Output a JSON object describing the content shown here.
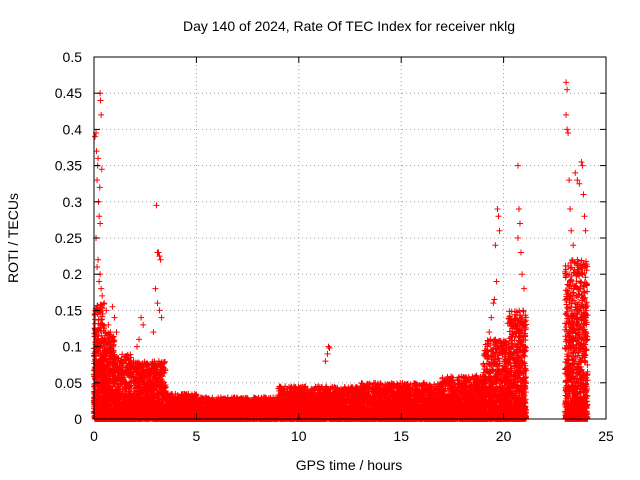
{
  "chart_data": {
    "type": "scatter",
    "title": "Day 140 of 2024, Rate Of TEC Index for receiver nklg",
    "xlabel": "GPS time / hours",
    "ylabel": "ROTI / TECUs",
    "xlim": [
      0,
      25
    ],
    "ylim": [
      0,
      0.5
    ],
    "xticks": [
      0,
      5,
      10,
      15,
      20,
      25
    ],
    "yticks": [
      0,
      0.05,
      0.1,
      0.15,
      0.2,
      0.25,
      0.3,
      0.35,
      0.4,
      0.45,
      0.5
    ],
    "grid": true,
    "marker": "+",
    "colors": {
      "points": "#ff0000",
      "grid": "#a0a0a0",
      "axis": "#000000"
    },
    "series": [
      {
        "name": "ROTI",
        "points": [
          [
            0.05,
            0.39
          ],
          [
            0.1,
            0.395
          ],
          [
            0.12,
            0.37
          ],
          [
            0.15,
            0.33
          ],
          [
            0.18,
            0.35
          ],
          [
            0.2,
            0.36
          ],
          [
            0.22,
            0.3
          ],
          [
            0.25,
            0.28
          ],
          [
            0.3,
            0.45
          ],
          [
            0.32,
            0.44
          ],
          [
            0.35,
            0.42
          ],
          [
            0.38,
            0.345
          ],
          [
            0.28,
            0.32
          ],
          [
            0.3,
            0.27
          ],
          [
            0.1,
            0.25
          ],
          [
            0.15,
            0.21
          ],
          [
            0.2,
            0.22
          ],
          [
            0.25,
            0.19
          ],
          [
            0.3,
            0.2
          ],
          [
            0.35,
            0.18
          ],
          [
            0.4,
            0.17
          ],
          [
            0.5,
            0.16
          ],
          [
            0.6,
            0.15
          ],
          [
            0.7,
            0.13
          ],
          [
            0.8,
            0.12
          ],
          [
            0.9,
            0.155
          ],
          [
            1.0,
            0.14
          ],
          [
            1.1,
            0.12
          ],
          [
            3.05,
            0.295
          ],
          [
            3.1,
            0.23
          ],
          [
            3.15,
            0.23
          ],
          [
            3.2,
            0.225
          ],
          [
            3.25,
            0.22
          ],
          [
            3.0,
            0.18
          ],
          [
            3.1,
            0.16
          ],
          [
            3.2,
            0.15
          ],
          [
            3.3,
            0.14
          ],
          [
            2.9,
            0.12
          ],
          [
            2.3,
            0.14
          ],
          [
            2.4,
            0.13
          ],
          [
            2.2,
            0.11
          ],
          [
            2.1,
            0.1
          ],
          [
            11.45,
            0.1
          ],
          [
            11.5,
            0.098
          ],
          [
            11.4,
            0.09
          ],
          [
            11.3,
            0.08
          ],
          [
            19.7,
            0.29
          ],
          [
            19.75,
            0.28
          ],
          [
            19.8,
            0.26
          ],
          [
            19.6,
            0.24
          ],
          [
            19.65,
            0.19
          ],
          [
            19.55,
            0.165
          ],
          [
            19.5,
            0.16
          ],
          [
            19.4,
            0.14
          ],
          [
            19.3,
            0.12
          ],
          [
            20.7,
            0.35
          ],
          [
            20.75,
            0.29
          ],
          [
            20.8,
            0.27
          ],
          [
            20.7,
            0.25
          ],
          [
            20.85,
            0.23
          ],
          [
            20.9,
            0.2
          ],
          [
            21.0,
            0.18
          ],
          [
            20.95,
            0.15
          ],
          [
            20.8,
            0.13
          ],
          [
            23.05,
            0.465
          ],
          [
            23.1,
            0.455
          ],
          [
            23.05,
            0.42
          ],
          [
            23.1,
            0.4
          ],
          [
            23.15,
            0.395
          ],
          [
            23.2,
            0.33
          ],
          [
            23.25,
            0.29
          ],
          [
            23.3,
            0.26
          ],
          [
            23.5,
            0.34
          ],
          [
            23.6,
            0.33
          ],
          [
            23.7,
            0.325
          ],
          [
            23.8,
            0.355
          ],
          [
            23.85,
            0.35
          ],
          [
            23.9,
            0.31
          ],
          [
            23.95,
            0.28
          ],
          [
            24.0,
            0.26
          ],
          [
            23.4,
            0.24
          ],
          [
            23.6,
            0.22
          ],
          [
            23.8,
            0.21
          ],
          [
            23.2,
            0.2
          ],
          [
            23.3,
            0.18
          ],
          [
            23.5,
            0.16
          ],
          [
            23.7,
            0.15
          ],
          [
            23.9,
            0.14
          ]
        ],
        "density_envelope": [
          {
            "x": [
              0.0,
              0.5
            ],
            "y": [
              0.0,
              0.16
            ]
          },
          {
            "x": [
              0.5,
              1.0
            ],
            "y": [
              0.0,
              0.12
            ]
          },
          {
            "x": [
              1.0,
              2.0
            ],
            "y": [
              0.0,
              0.09
            ]
          },
          {
            "x": [
              2.0,
              3.5
            ],
            "y": [
              0.0,
              0.08
            ]
          },
          {
            "x": [
              3.5,
              5.0
            ],
            "y": [
              0.0,
              0.035
            ]
          },
          {
            "x": [
              5.0,
              9.0
            ],
            "y": [
              0.0,
              0.03
            ]
          },
          {
            "x": [
              9.0,
              13.0
            ],
            "y": [
              0.0,
              0.045
            ]
          },
          {
            "x": [
              13.0,
              17.0
            ],
            "y": [
              0.0,
              0.05
            ]
          },
          {
            "x": [
              17.0,
              19.0
            ],
            "y": [
              0.0,
              0.06
            ]
          },
          {
            "x": [
              19.0,
              20.2
            ],
            "y": [
              0.0,
              0.11
            ]
          },
          {
            "x": [
              20.2,
              21.1
            ],
            "y": [
              0.0,
              0.15
            ]
          },
          {
            "x": [
              23.0,
              24.1
            ],
            "y": [
              0.0,
              0.22
            ]
          }
        ]
      }
    ]
  }
}
